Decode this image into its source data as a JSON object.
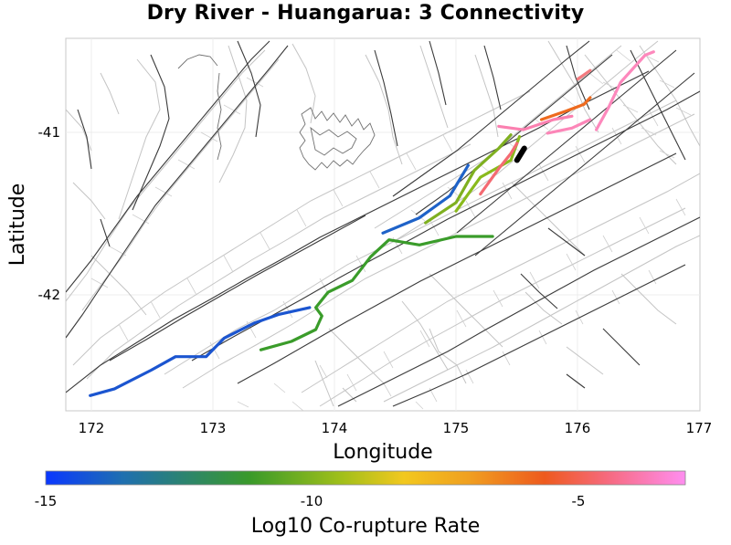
{
  "title": "Dry River - Huangarua: 3 Connectivity",
  "x_axis": {
    "label": "Longitude",
    "ticks": [
      "172",
      "173",
      "174",
      "175",
      "176",
      "177"
    ]
  },
  "y_axis": {
    "label": "Latitude",
    "ticks": [
      "-41",
      "-42"
    ]
  },
  "colorbar": {
    "label": "Log10 Co-rupture Rate",
    "ticks": [
      "-15",
      "-10",
      "-5"
    ],
    "min": -15,
    "max": -3,
    "stops": [
      "#0a37ff",
      "#1f6fb0",
      "#3a9a2a",
      "#9fbf1a",
      "#f2c81e",
      "#f0a020",
      "#ee5a1e",
      "#f66a80",
      "#ff8ef0"
    ]
  },
  "map_data": {
    "lon_range": [
      171.8,
      177.0
    ],
    "lat_range": [
      -42.7,
      -40.5
    ],
    "ruptures": [
      {
        "name": "blue-west",
        "color": "#1b55d0",
        "rate": -14.5,
        "path": [
          [
            172.0,
            -42.61
          ],
          [
            172.2,
            -42.57
          ],
          [
            172.5,
            -42.46
          ],
          [
            172.7,
            -42.38
          ],
          [
            172.95,
            -42.38
          ],
          [
            173.1,
            -42.27
          ],
          [
            173.35,
            -42.18
          ],
          [
            173.55,
            -42.13
          ],
          [
            173.8,
            -42.09
          ]
        ]
      },
      {
        "name": "blue-mid",
        "color": "#1e62c8",
        "rate": -14.0,
        "path": [
          [
            174.4,
            -41.65
          ],
          [
            174.7,
            -41.56
          ],
          [
            174.95,
            -41.43
          ],
          [
            175.1,
            -41.25
          ]
        ]
      },
      {
        "name": "green-long",
        "color": "#3a9c2a",
        "rate": -12.0,
        "path": [
          [
            173.4,
            -42.34
          ],
          [
            173.65,
            -42.29
          ],
          [
            173.85,
            -42.22
          ],
          [
            173.9,
            -42.14
          ],
          [
            173.85,
            -42.09
          ],
          [
            173.95,
            -42.0
          ],
          [
            174.15,
            -41.93
          ],
          [
            174.3,
            -41.79
          ],
          [
            174.45,
            -41.69
          ],
          [
            174.7,
            -41.72
          ],
          [
            175.0,
            -41.67
          ],
          [
            175.3,
            -41.67
          ]
        ]
      },
      {
        "name": "olive-1",
        "color": "#7fb020",
        "rate": -11.0,
        "path": [
          [
            174.75,
            -41.59
          ],
          [
            175.0,
            -41.47
          ],
          [
            175.15,
            -41.28
          ],
          [
            175.35,
            -41.15
          ],
          [
            175.45,
            -41.07
          ]
        ]
      },
      {
        "name": "olive-2",
        "color": "#8aba1c",
        "rate": -10.8,
        "path": [
          [
            175.0,
            -41.52
          ],
          [
            175.1,
            -41.42
          ],
          [
            175.2,
            -41.32
          ],
          [
            175.45,
            -41.22
          ],
          [
            175.52,
            -41.08
          ]
        ]
      },
      {
        "name": "orange-1",
        "color": "#ee6a1e",
        "rate": -5.5,
        "path": [
          [
            175.7,
            -40.98
          ],
          [
            175.9,
            -40.93
          ],
          [
            176.05,
            -40.89
          ],
          [
            176.1,
            -40.85
          ]
        ]
      },
      {
        "name": "salmon-1",
        "color": "#f46a72",
        "rate": -5.0,
        "path": [
          [
            175.2,
            -41.42
          ],
          [
            175.35,
            -41.27
          ],
          [
            175.45,
            -41.18
          ],
          [
            175.5,
            -41.12
          ]
        ]
      },
      {
        "name": "salmon-2",
        "color": "#f47b80",
        "rate": -4.8,
        "path": [
          [
            176.0,
            -40.74
          ],
          [
            176.1,
            -40.69
          ]
        ]
      },
      {
        "name": "pink-1",
        "color": "#fb80b0",
        "rate": -4.2,
        "path": [
          [
            175.35,
            -41.02
          ],
          [
            175.55,
            -41.04
          ],
          [
            175.8,
            -40.98
          ],
          [
            175.95,
            -40.96
          ]
        ]
      },
      {
        "name": "pink-2",
        "color": "#fd88bc",
        "rate": -4.0,
        "path": [
          [
            176.15,
            -41.04
          ],
          [
            176.25,
            -40.91
          ],
          [
            176.35,
            -40.76
          ],
          [
            176.55,
            -40.6
          ],
          [
            176.62,
            -40.58
          ]
        ]
      },
      {
        "name": "pink-3",
        "color": "#fc86b8",
        "rate": -4.1,
        "path": [
          [
            175.75,
            -41.06
          ],
          [
            175.95,
            -41.03
          ],
          [
            176.1,
            -40.98
          ]
        ]
      },
      {
        "name": "source-fault",
        "color": "#000000",
        "rate": null,
        "path": [
          [
            175.5,
            -41.22
          ],
          [
            175.56,
            -41.15
          ]
        ]
      }
    ]
  }
}
